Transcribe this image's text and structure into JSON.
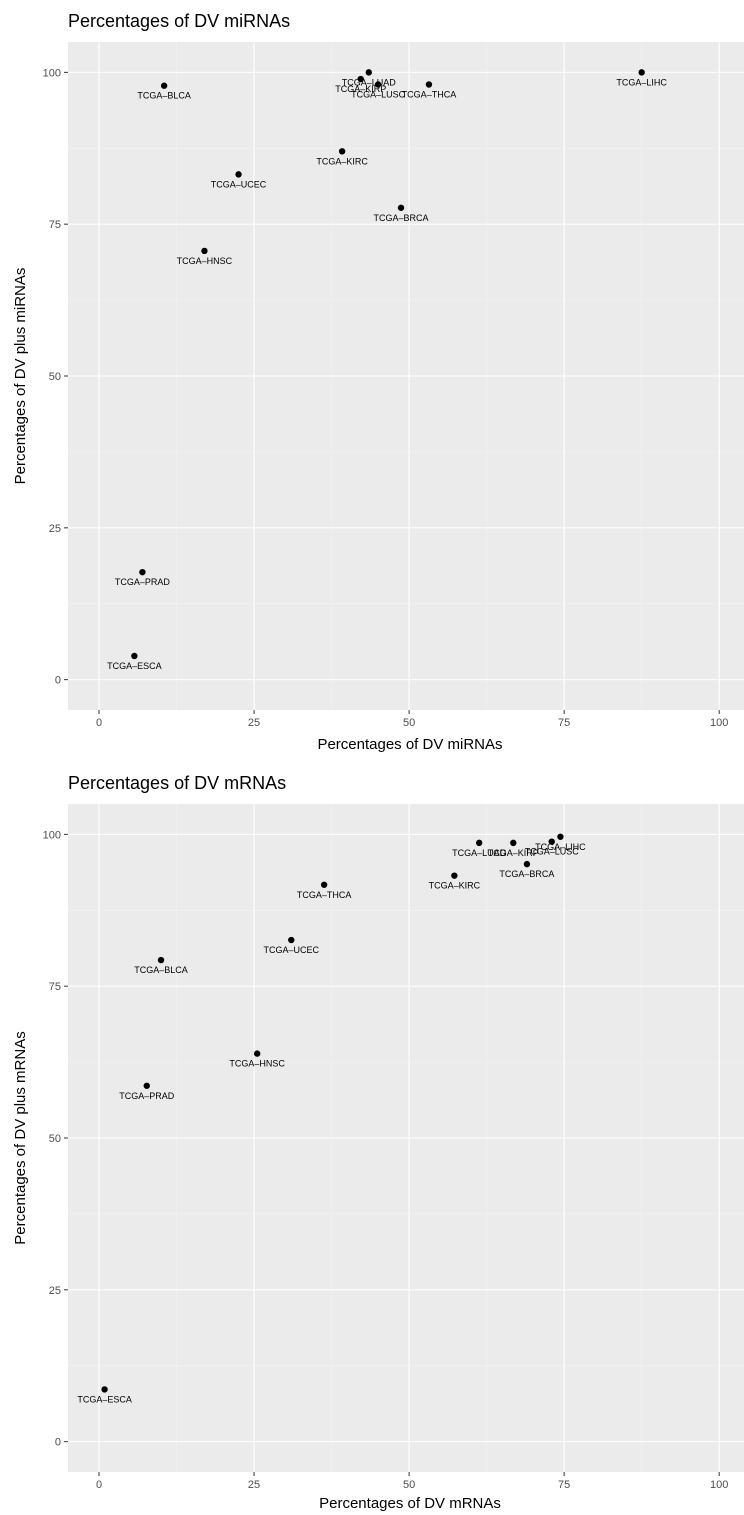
{
  "chart_data": [
    {
      "type": "scatter",
      "title": "Percentages of DV miRNAs",
      "xlabel": "Percentages of DV miRNAs",
      "ylabel": "Percentages of DV plus miRNAs",
      "xlim": [
        -5,
        104
      ],
      "ylim": [
        -5,
        105
      ],
      "x_ticks": [
        "0",
        "25",
        "50",
        "75",
        "100"
      ],
      "y_ticks": [
        "0",
        "25",
        "50",
        "75",
        "100"
      ],
      "grid": true,
      "points": [
        {
          "label": "TCGA–BLCA",
          "x": 10.5,
          "y": 97.8
        },
        {
          "label": "TCGA–LUAD",
          "x": 43.5,
          "y": 100.0
        },
        {
          "label": "TCGA–KIRP",
          "x": 42.2,
          "y": 98.9
        },
        {
          "label": "TCGA–LUSC",
          "x": 45.0,
          "y": 98.0
        },
        {
          "label": "TCGA–THCA",
          "x": 53.2,
          "y": 98.0
        },
        {
          "label": "TCGA–LIHC",
          "x": 87.5,
          "y": 100.0
        },
        {
          "label": "TCGA–KIRC",
          "x": 39.2,
          "y": 87.0
        },
        {
          "label": "TCGA–UCEC",
          "x": 22.5,
          "y": 83.2
        },
        {
          "label": "TCGA–BRCA",
          "x": 48.7,
          "y": 77.7
        },
        {
          "label": "TCGA–HNSC",
          "x": 17.0,
          "y": 70.6
        },
        {
          "label": "TCGA–PRAD",
          "x": 7.0,
          "y": 17.7
        },
        {
          "label": "TCGA–ESCA",
          "x": 5.7,
          "y": 3.9
        }
      ]
    },
    {
      "type": "scatter",
      "title": "Percentages of DV mRNAs",
      "xlabel": "Percentages of DV mRNAs",
      "ylabel": "Percentages of DV plus mRNAs",
      "xlim": [
        -5,
        104
      ],
      "ylim": [
        -5,
        105
      ],
      "x_ticks": [
        "0",
        "25",
        "50",
        "75",
        "100"
      ],
      "y_ticks": [
        "0",
        "25",
        "50",
        "75",
        "100"
      ],
      "grid": true,
      "points": [
        {
          "label": "TCGA–LUAD",
          "x": 61.3,
          "y": 98.6
        },
        {
          "label": "TCGA–KIRP",
          "x": 66.8,
          "y": 98.6
        },
        {
          "label": "TCGA–LUSC",
          "x": 73.0,
          "y": 98.8
        },
        {
          "label": "TCGA–LIHC",
          "x": 74.4,
          "y": 99.6
        },
        {
          "label": "TCGA–KIRC",
          "x": 57.3,
          "y": 93.2
        },
        {
          "label": "TCGA–BRCA",
          "x": 69.0,
          "y": 95.1
        },
        {
          "label": "TCGA–THCA",
          "x": 36.3,
          "y": 91.7
        },
        {
          "label": "TCGA–UCEC",
          "x": 31.0,
          "y": 82.6
        },
        {
          "label": "TCGA–BLCA",
          "x": 10.0,
          "y": 79.3
        },
        {
          "label": "TCGA–HNSC",
          "x": 25.5,
          "y": 63.9
        },
        {
          "label": "TCGA–PRAD",
          "x": 7.7,
          "y": 58.6
        },
        {
          "label": "TCGA–ESCA",
          "x": 0.9,
          "y": 8.6
        }
      ]
    }
  ]
}
